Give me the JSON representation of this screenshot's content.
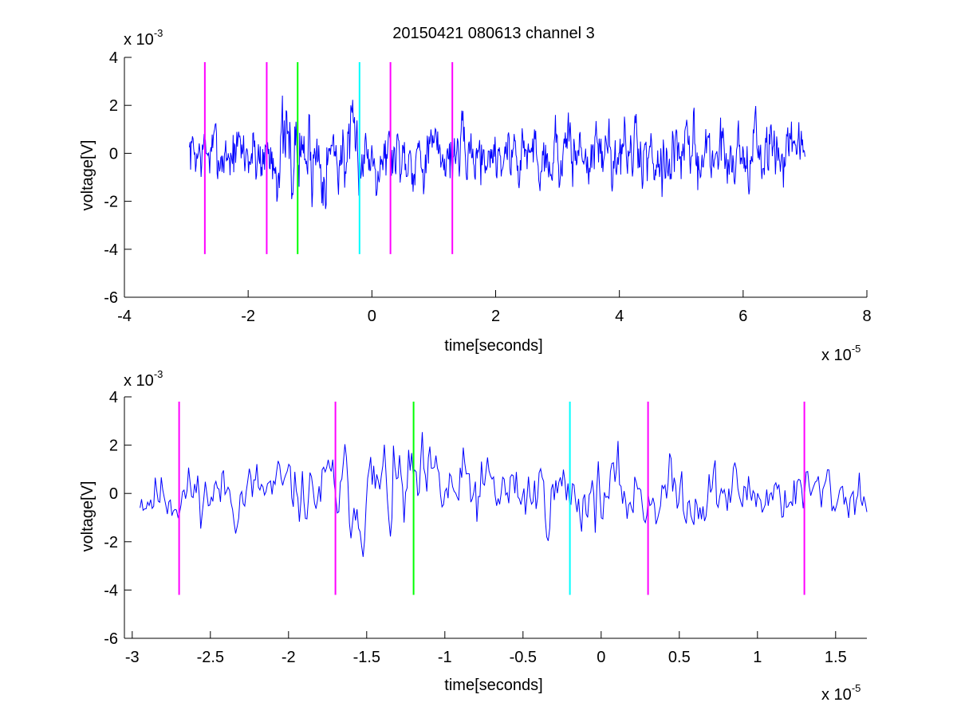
{
  "chart_data": [
    {
      "type": "line",
      "title": "20150421 080613 channel 3",
      "xlabel": "time[seconds]",
      "ylabel": "voltage[V]",
      "x_multiplier_label": "x 10",
      "x_multiplier_exponent": "-5",
      "y_multiplier_label": "x 10",
      "y_multiplier_exponent": "-3",
      "xlim": [
        -4,
        8
      ],
      "ylim": [
        -6,
        4
      ],
      "x_ticks": [
        -4,
        -2,
        0,
        2,
        4,
        6,
        8
      ],
      "x_tick_labels": [
        "-4",
        "-2",
        "0",
        "2",
        "4",
        "6",
        "8"
      ],
      "y_ticks": [
        -6,
        -4,
        -2,
        0,
        2,
        4
      ],
      "y_tick_labels": [
        "-6",
        "-4",
        "-2",
        "0",
        "2",
        "4"
      ],
      "grid": false,
      "signal": {
        "x_start": -2.95,
        "x_end": 7.0,
        "samples": 1000,
        "color": "#0000ff",
        "seed": 7,
        "amplitude_envelope": [
          [
            -2.95,
            0.75
          ],
          [
            -1.9,
            0.9
          ],
          [
            -1.3,
            1.35
          ],
          [
            -0.2,
            0.95
          ],
          [
            1.5,
            0.8
          ],
          [
            3.0,
            0.9
          ],
          [
            6.5,
            0.95
          ],
          [
            7.0,
            0.5
          ]
        ]
      },
      "markers": [
        {
          "x": -2.7,
          "y_range": [
            -4.2,
            3.8
          ],
          "color": "#ff00ff"
        },
        {
          "x": -1.7,
          "y_range": [
            -4.2,
            3.8
          ],
          "color": "#ff00ff"
        },
        {
          "x": -1.2,
          "y_range": [
            -4.2,
            3.8
          ],
          "color": "#00ff00"
        },
        {
          "x": -0.2,
          "y_range": [
            -4.2,
            3.8
          ],
          "color": "#00ffff"
        },
        {
          "x": 0.3,
          "y_range": [
            -4.2,
            3.8
          ],
          "color": "#ff00ff"
        },
        {
          "x": 1.3,
          "y_range": [
            -4.2,
            3.8
          ],
          "color": "#ff00ff"
        }
      ]
    },
    {
      "type": "line",
      "xlabel": "time[seconds]",
      "ylabel": "voltage[V]",
      "x_multiplier_label": "x 10",
      "x_multiplier_exponent": "-5",
      "y_multiplier_label": "x 10",
      "y_multiplier_exponent": "-3",
      "xlim": [
        -3.05,
        1.7
      ],
      "ylim": [
        -6,
        4
      ],
      "x_ticks": [
        -3,
        -2.5,
        -2,
        -1.5,
        -1,
        -0.5,
        0,
        0.5,
        1,
        1.5
      ],
      "x_tick_labels": [
        "-3",
        "-2.5",
        "-2",
        "-1.5",
        "-1",
        "-0.5",
        "0",
        "0.5",
        "1",
        "1.5"
      ],
      "y_ticks": [
        -6,
        -4,
        -2,
        0,
        2,
        4
      ],
      "y_tick_labels": [
        "-6",
        "-4",
        "-2",
        "0",
        "2",
        "4"
      ],
      "grid": false,
      "signal": {
        "x_start": -2.95,
        "x_end": 1.7,
        "samples": 480,
        "color": "#0000ff",
        "seed": 11,
        "amplitude_envelope": [
          [
            -2.95,
            0.75
          ],
          [
            -1.9,
            0.9
          ],
          [
            -1.3,
            1.45
          ],
          [
            -1.0,
            1.1
          ],
          [
            -0.2,
            0.95
          ],
          [
            0.0,
            1.0
          ],
          [
            1.7,
            0.75
          ]
        ]
      },
      "markers": [
        {
          "x": -2.7,
          "y_range": [
            -4.2,
            3.8
          ],
          "color": "#ff00ff"
        },
        {
          "x": -1.7,
          "y_range": [
            -4.2,
            3.8
          ],
          "color": "#ff00ff"
        },
        {
          "x": -1.2,
          "y_range": [
            -4.2,
            3.8
          ],
          "color": "#00ff00"
        },
        {
          "x": -0.2,
          "y_range": [
            -4.2,
            3.8
          ],
          "color": "#00ffff"
        },
        {
          "x": 0.3,
          "y_range": [
            -4.2,
            3.8
          ],
          "color": "#ff00ff"
        },
        {
          "x": 1.3,
          "y_range": [
            -4.2,
            3.8
          ],
          "color": "#ff00ff"
        }
      ]
    }
  ]
}
